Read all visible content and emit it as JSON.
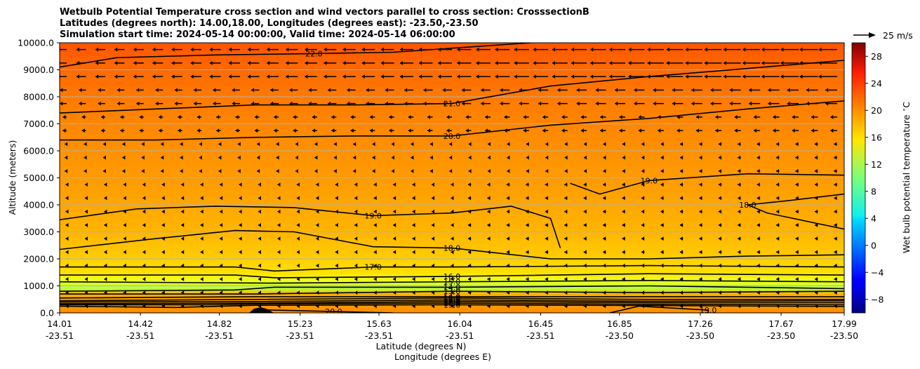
{
  "title_lines": [
    "Wetbulb Potential Temperature cross section and wind vectors parallel to cross section: CrosssectionB",
    "Latitudes (degrees north): 14.00,18.00, Longitudes (degrees east): -23.50,-23.50",
    "Simulation start time: 2024-05-14 00:00:00, Valid time: 2024-05-14 06:00:00"
  ],
  "quiver_key_label": "25 m/s",
  "chart_data": {
    "type": "contourf",
    "ylabel": "Altitude (meters)",
    "xlabel_lines": [
      "Latitude (degrees N)",
      "Longitude (degrees E)"
    ],
    "ylim": [
      0,
      10000
    ],
    "y_ticks": [
      "0.0",
      "1000.0",
      "2000.0",
      "3000.0",
      "4000.0",
      "5000.0",
      "6000.0",
      "7000.0",
      "8000.0",
      "9000.0",
      "10000.0"
    ],
    "y_tick_values": [
      0,
      1000,
      2000,
      3000,
      4000,
      5000,
      6000,
      7000,
      8000,
      9000,
      10000
    ],
    "x_ticks": [
      {
        "lat": "14.01",
        "lon": "-23.51"
      },
      {
        "lat": "14.42",
        "lon": "-23.51"
      },
      {
        "lat": "14.82",
        "lon": "-23.51"
      },
      {
        "lat": "15.23",
        "lon": "-23.51"
      },
      {
        "lat": "15.63",
        "lon": "-23.51"
      },
      {
        "lat": "16.04",
        "lon": "-23.51"
      },
      {
        "lat": "16.45",
        "lon": "-23.51"
      },
      {
        "lat": "16.85",
        "lon": "-23.50"
      },
      {
        "lat": "17.26",
        "lon": "-23.50"
      },
      {
        "lat": "17.67",
        "lon": "-23.50"
      },
      {
        "lat": "17.99",
        "lon": "-23.50"
      }
    ],
    "x_tick_values": [
      14.01,
      14.42,
      14.82,
      15.23,
      15.63,
      16.04,
      16.45,
      16.85,
      17.26,
      17.67,
      17.99
    ],
    "xlim": [
      14.01,
      17.99
    ],
    "colorbar": {
      "label": "Wet bulb potential temperature $^\\circ$C",
      "ticks": [
        "−8",
        "−4",
        "0",
        "4",
        "8",
        "12",
        "16",
        "20",
        "24",
        "28"
      ],
      "tick_values": [
        -8,
        -4,
        0,
        4,
        8,
        12,
        16,
        20,
        24,
        28
      ],
      "range": [
        -10,
        30
      ],
      "colormap": "jet"
    },
    "contours": [
      {
        "level": 22.0,
        "label": "22.0",
        "points": [
          [
            14.01,
            9100
          ],
          [
            14.3,
            9450
          ],
          [
            14.8,
            9550
          ],
          [
            15.3,
            9600
          ],
          [
            15.7,
            9650
          ],
          [
            16.0,
            9800
          ],
          [
            16.4,
            10000
          ]
        ]
      },
      {
        "level": 21.0,
        "label": "21.0",
        "points": [
          [
            14.01,
            7400
          ],
          [
            14.5,
            7550
          ],
          [
            15.0,
            7700
          ],
          [
            15.5,
            7700
          ],
          [
            16.0,
            7750
          ],
          [
            16.5,
            8400
          ],
          [
            17.0,
            8750
          ],
          [
            17.5,
            9050
          ],
          [
            17.99,
            9350
          ]
        ]
      },
      {
        "level": 20.0,
        "label": "20.0",
        "points": [
          [
            14.01,
            6400
          ],
          [
            14.5,
            6400
          ],
          [
            15.0,
            6500
          ],
          [
            15.5,
            6550
          ],
          [
            16.0,
            6550
          ],
          [
            16.5,
            6950
          ],
          [
            17.0,
            7200
          ],
          [
            17.5,
            7550
          ],
          [
            17.99,
            7850
          ]
        ]
      },
      {
        "level": 19.0,
        "label": "19.0",
        "points": [
          [
            14.01,
            3450
          ],
          [
            14.4,
            3850
          ],
          [
            14.8,
            3950
          ],
          [
            15.2,
            3900
          ],
          [
            15.6,
            3600
          ],
          [
            16.0,
            3700
          ],
          [
            16.3,
            3950
          ],
          [
            16.5,
            3500
          ],
          [
            16.55,
            2400
          ]
        ]
      },
      {
        "level": 19.0,
        "label": "19.0",
        "points": [
          [
            16.6,
            4800
          ],
          [
            16.75,
            4400
          ],
          [
            17.0,
            4900
          ],
          [
            17.5,
            5150
          ],
          [
            17.99,
            5100
          ]
        ]
      },
      {
        "level": 18.0,
        "label": "18.0",
        "points": [
          [
            17.99,
            4400
          ],
          [
            17.7,
            4150
          ],
          [
            17.5,
            4000
          ],
          [
            17.6,
            3700
          ],
          [
            17.99,
            3100
          ]
        ]
      },
      {
        "level": 18.0,
        "label": "18.0",
        "points": [
          [
            14.01,
            2350
          ],
          [
            14.5,
            2750
          ],
          [
            14.9,
            3050
          ],
          [
            15.2,
            3000
          ],
          [
            15.6,
            2450
          ],
          [
            16.0,
            2400
          ],
          [
            16.5,
            2000
          ],
          [
            17.0,
            2000
          ],
          [
            17.5,
            2100
          ],
          [
            17.99,
            2150
          ]
        ]
      },
      {
        "level": 17.0,
        "label": "17.0",
        "points": [
          [
            14.01,
            1700
          ],
          [
            14.9,
            1700
          ],
          [
            15.1,
            1550
          ],
          [
            15.6,
            1700
          ],
          [
            16.0,
            1700
          ],
          [
            17.0,
            1750
          ],
          [
            17.99,
            1700
          ]
        ]
      },
      {
        "level": 16.0,
        "label": "16.0",
        "points": [
          [
            14.01,
            1400
          ],
          [
            14.9,
            1400
          ],
          [
            15.1,
            1300
          ],
          [
            16.0,
            1350
          ],
          [
            17.0,
            1450
          ],
          [
            17.99,
            1400
          ]
        ]
      },
      {
        "level": 15.0,
        "label": "15.0",
        "points": [
          [
            14.01,
            1150
          ],
          [
            15.1,
            1100
          ],
          [
            16.0,
            1150
          ],
          [
            17.0,
            1200
          ],
          [
            17.99,
            1150
          ]
        ]
      },
      {
        "level": 14.0,
        "label": "14.0",
        "points": [
          [
            14.01,
            800
          ],
          [
            14.9,
            850
          ],
          [
            15.1,
            950
          ],
          [
            16.0,
            950
          ],
          [
            17.0,
            1000
          ],
          [
            17.99,
            900
          ]
        ]
      },
      {
        "level": 13.0,
        "label": "13.0",
        "points": [
          [
            14.01,
            700
          ],
          [
            15.0,
            700
          ],
          [
            16.0,
            800
          ],
          [
            17.0,
            750
          ],
          [
            17.99,
            800
          ]
        ]
      },
      {
        "level": 14.0,
        "label": "14.0",
        "points": [
          [
            14.01,
            550
          ],
          [
            15.0,
            600
          ],
          [
            16.0,
            600
          ],
          [
            17.0,
            600
          ],
          [
            17.99,
            600
          ]
        ]
      },
      {
        "level": 15.0,
        "label": "15.0",
        "points": [
          [
            14.01,
            450
          ],
          [
            15.0,
            500
          ],
          [
            16.0,
            550
          ],
          [
            17.0,
            500
          ],
          [
            17.99,
            500
          ]
        ]
      },
      {
        "level": 16.0,
        "label": "16.0",
        "points": [
          [
            14.01,
            400
          ],
          [
            15.0,
            420
          ],
          [
            16.0,
            480
          ],
          [
            17.0,
            430
          ],
          [
            17.99,
            450
          ]
        ]
      },
      {
        "level": 17.0,
        "label": "17.0",
        "points": [
          [
            14.01,
            340
          ],
          [
            15.0,
            360
          ],
          [
            16.0,
            420
          ],
          [
            17.0,
            380
          ],
          [
            17.99,
            380
          ]
        ]
      },
      {
        "level": 18.0,
        "label": "18.0",
        "points": [
          [
            14.01,
            300
          ],
          [
            14.8,
            300
          ],
          [
            15.0,
            330
          ],
          [
            16.0,
            360
          ],
          [
            17.0,
            320
          ],
          [
            17.99,
            300
          ]
        ]
      },
      {
        "level": 19.0,
        "label": "19.0",
        "points": [
          [
            14.01,
            250
          ],
          [
            14.6,
            200
          ],
          [
            15.0,
            280
          ],
          [
            16.0,
            300
          ],
          [
            17.0,
            270
          ],
          [
            17.99,
            240
          ]
        ]
      },
      {
        "level": 19.0,
        "label": "19.0",
        "points": [
          [
            16.8,
            0
          ],
          [
            16.95,
            250
          ],
          [
            17.3,
            100
          ],
          [
            17.3,
            0
          ]
        ]
      },
      {
        "level": 20.0,
        "label": "20.0",
        "points": [
          [
            15.0,
            120
          ],
          [
            15.4,
            50
          ],
          [
            15.7,
            0
          ]
        ]
      }
    ],
    "wind_vectors": "parallel component, westward (negative) aloft above ~6000 m, weak below"
  }
}
